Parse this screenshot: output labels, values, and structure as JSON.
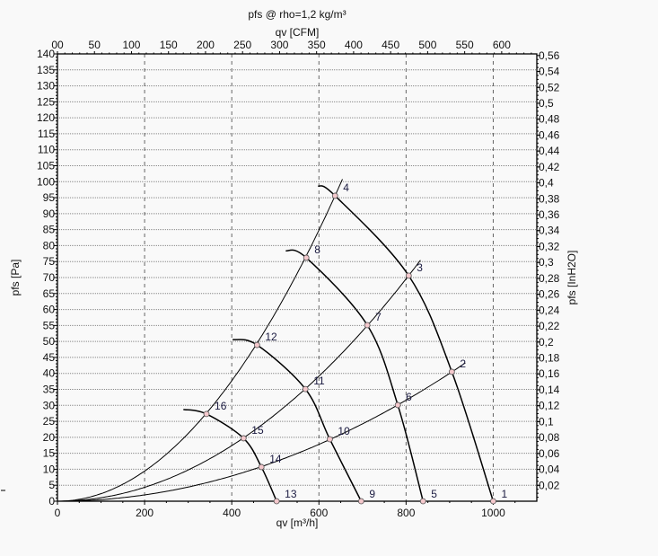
{
  "chart_data": {
    "type": "line",
    "title": "pfs @ rho=1,2 kg/m³",
    "xlabel": "qv [m³/h]",
    "ylabel": "pfs [Pa]",
    "x2label": "qv [CFM]",
    "y2label": "pfs [InH2O]",
    "xlim": [
      0,
      1100
    ],
    "ylim": [
      0,
      140
    ],
    "x_ticks": [
      "0",
      "200",
      "400",
      "600",
      "800",
      "1000"
    ],
    "y_ticks": [
      "0",
      "5",
      "10",
      "15",
      "20",
      "25",
      "30",
      "35",
      "40",
      "45",
      "50",
      "55",
      "60",
      "65",
      "70",
      "75",
      "80",
      "85",
      "90",
      "95",
      "100",
      "105",
      "110",
      "115",
      "120",
      "125",
      "130",
      "135",
      "140"
    ],
    "x2_ticks": [
      "00",
      "50",
      "100",
      "150",
      "200",
      "250",
      "300",
      "350",
      "400",
      "450",
      "500",
      "550",
      "600"
    ],
    "y2_ticks": [
      "0,02",
      "0,04",
      "0,06",
      "0,08",
      "0,1",
      "0,12",
      "0,14",
      "0,16",
      "0,18",
      "0,2",
      "0,22",
      "0,24",
      "0,26",
      "0,28",
      "0,3",
      "0,32",
      "0,34",
      "0,36",
      "0,38",
      "0,4",
      "0,42",
      "0,44",
      "0,46",
      "0,48",
      "0,5",
      "0,52",
      "0,54",
      "0,56"
    ],
    "grid": true,
    "fan_curves": [
      {
        "x": [
          598,
          637,
          806,
          905,
          1000
        ],
        "y": [
          98.7,
          95.6,
          70.6,
          40.5,
          0
        ]
      },
      {
        "x": [
          524,
          571,
          711,
          781,
          839
        ],
        "y": [
          78.4,
          76.2,
          55.1,
          30.1,
          0
        ]
      },
      {
        "x": [
          402,
          458,
          569,
          625,
          697
        ],
        "y": [
          50.6,
          48.9,
          35.1,
          19.4,
          0
        ]
      },
      {
        "x": [
          289,
          342,
          427,
          468,
          503
        ],
        "y": [
          28.7,
          27.3,
          19.7,
          10.7,
          0
        ]
      }
    ],
    "system_curves": [
      {
        "k": 4.94e-05,
        "x_end": 936
      },
      {
        "k": 0.0001087,
        "x_end": 833
      },
      {
        "k": 0.0002356,
        "x_end": 654
      }
    ],
    "points": [
      {
        "label": "1",
        "x": 1000,
        "y": 0
      },
      {
        "label": "2",
        "x": 905,
        "y": 40.5
      },
      {
        "label": "3",
        "x": 806,
        "y": 70.6
      },
      {
        "label": "4",
        "x": 637,
        "y": 95.6
      },
      {
        "label": "5",
        "x": 839,
        "y": 0
      },
      {
        "label": "6",
        "x": 781,
        "y": 30.1
      },
      {
        "label": "7",
        "x": 711,
        "y": 55.1
      },
      {
        "label": "8",
        "x": 571,
        "y": 76.2
      },
      {
        "label": "9",
        "x": 697,
        "y": 0
      },
      {
        "label": "10",
        "x": 625,
        "y": 19.4
      },
      {
        "label": "11",
        "x": 569,
        "y": 35.1
      },
      {
        "label": "12",
        "x": 458,
        "y": 48.9
      },
      {
        "label": "13",
        "x": 503,
        "y": 0
      },
      {
        "label": "14",
        "x": 468,
        "y": 10.7
      },
      {
        "label": "15",
        "x": 427,
        "y": 19.7
      },
      {
        "label": "16",
        "x": 342,
        "y": 27.3
      }
    ],
    "colors": {
      "curve": "#000000",
      "point_fill": "#f4c8cc",
      "grid": "#888888",
      "background": "#f9f9f9"
    }
  }
}
